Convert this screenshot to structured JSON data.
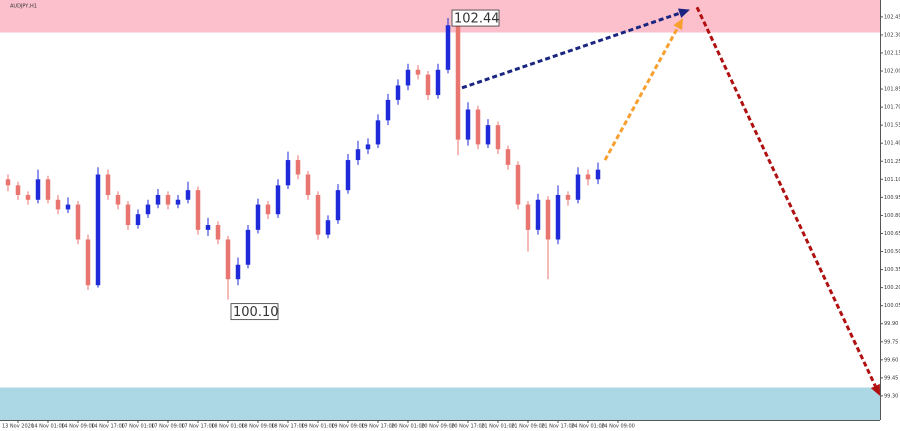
{
  "chart_data": {
    "type": "candlestick",
    "title": "AUDJPY,H1",
    "up_color": "#1f2bd8",
    "down_color": "#e8756f",
    "xlim": [
      -0.8,
      87.2
    ],
    "ylim": [
      99.1,
      102.59
    ],
    "yticks": [
      {
        "value": 99.3,
        "label": "99.30"
      },
      {
        "value": 99.45,
        "label": "99.45"
      },
      {
        "value": 99.6,
        "label": "99.60"
      },
      {
        "value": 99.75,
        "label": "99.75"
      },
      {
        "value": 99.9,
        "label": "99.90"
      },
      {
        "value": 100.05,
        "label": "100.05"
      },
      {
        "value": 100.2,
        "label": "100.20"
      },
      {
        "value": 100.35,
        "label": "100.35"
      },
      {
        "value": 100.5,
        "label": "100.50"
      },
      {
        "value": 100.65,
        "label": "100.65"
      },
      {
        "value": 100.8,
        "label": "100.80"
      },
      {
        "value": 100.95,
        "label": "100.95"
      },
      {
        "value": 101.1,
        "label": "101.10"
      },
      {
        "value": 101.25,
        "label": "101.25"
      },
      {
        "value": 101.4,
        "label": "101.40"
      },
      {
        "value": 101.55,
        "label": "101.55"
      },
      {
        "value": 101.7,
        "label": "101.70"
      },
      {
        "value": 101.85,
        "label": "101.85"
      },
      {
        "value": 102,
        "label": "102.00"
      },
      {
        "value": 102.15,
        "label": "102.15"
      },
      {
        "value": 102.3,
        "label": "102.30"
      },
      {
        "value": 102.45,
        "label": "102.45"
      }
    ],
    "xticks": [
      {
        "value": 1,
        "label": "13 Nov 2020"
      },
      {
        "value": 4,
        "label": "14 Nov 01:00"
      },
      {
        "value": 7,
        "label": "14 Nov 09:00"
      },
      {
        "value": 10,
        "label": "14 Nov 17:00"
      },
      {
        "value": 13,
        "label": "17 Nov 01:00"
      },
      {
        "value": 16,
        "label": "17 Nov 09:00"
      },
      {
        "value": 19,
        "label": "17 Nov 17:00"
      },
      {
        "value": 22,
        "label": "18 Nov 01:00"
      },
      {
        "value": 25,
        "label": "18 Nov 09:00"
      },
      {
        "value": 28,
        "label": "18 Nov 17:00"
      },
      {
        "value": 31,
        "label": "19 Nov 01:00"
      },
      {
        "value": 34,
        "label": "19 Nov 09:00"
      },
      {
        "value": 37,
        "label": "19 Nov 17:00"
      },
      {
        "value": 40,
        "label": "20 Nov 01:00"
      },
      {
        "value": 43,
        "label": "20 Nov 09:00"
      },
      {
        "value": 46,
        "label": "20 Nov 17:00"
      },
      {
        "value": 49,
        "label": "21 Nov 01:00"
      },
      {
        "value": 52,
        "label": "21 Nov 09:00"
      },
      {
        "value": 55,
        "label": "21 Nov 17:00"
      },
      {
        "value": 58,
        "label": "24 Nov 01:00"
      },
      {
        "value": 61,
        "label": "24 Nov 09:00"
      }
    ],
    "zones": [
      {
        "from": 102.32,
        "to": 102.59,
        "color": "#fbc0cc"
      },
      {
        "from": 99.1,
        "to": 99.37,
        "color": "#acd8e6"
      }
    ],
    "ohlc": [
      [
        101.1,
        101.14,
        101.0,
        101.05
      ],
      [
        101.05,
        101.08,
        100.93,
        100.97
      ],
      [
        100.97,
        101.0,
        100.89,
        100.93
      ],
      [
        100.93,
        101.18,
        100.9,
        101.1
      ],
      [
        101.1,
        101.13,
        100.9,
        100.93
      ],
      [
        100.93,
        100.97,
        100.81,
        100.85
      ],
      [
        100.85,
        100.95,
        100.82,
        100.89
      ],
      [
        100.89,
        100.92,
        100.56,
        100.6
      ],
      [
        100.6,
        100.64,
        100.18,
        100.22
      ],
      [
        100.22,
        101.2,
        100.2,
        101.14
      ],
      [
        101.14,
        101.18,
        100.93,
        100.97
      ],
      [
        100.97,
        101.0,
        100.85,
        100.89
      ],
      [
        100.89,
        100.92,
        100.68,
        100.72
      ],
      [
        100.72,
        100.85,
        100.69,
        100.81
      ],
      [
        100.81,
        100.93,
        100.78,
        100.89
      ],
      [
        100.89,
        101.02,
        100.86,
        100.97
      ],
      [
        100.97,
        101.0,
        100.85,
        100.89
      ],
      [
        100.89,
        100.97,
        100.86,
        100.93
      ],
      [
        100.93,
        101.08,
        100.9,
        101.01
      ],
      [
        101.01,
        101.04,
        100.64,
        100.68
      ],
      [
        100.68,
        100.78,
        100.63,
        100.72
      ],
      [
        100.72,
        100.75,
        100.56,
        100.6
      ],
      [
        100.6,
        100.63,
        100.1,
        100.27
      ],
      [
        100.27,
        100.45,
        100.22,
        100.39
      ],
      [
        100.39,
        100.72,
        100.36,
        100.68
      ],
      [
        100.68,
        100.94,
        100.65,
        100.89
      ],
      [
        100.89,
        100.92,
        100.77,
        100.81
      ],
      [
        100.81,
        101.1,
        100.78,
        101.05
      ],
      [
        101.05,
        101.33,
        101.02,
        101.26
      ],
      [
        101.26,
        101.3,
        101.1,
        101.14
      ],
      [
        101.14,
        101.17,
        100.93,
        100.97
      ],
      [
        100.97,
        101.0,
        100.6,
        100.64
      ],
      [
        100.64,
        100.8,
        100.61,
        100.76
      ],
      [
        100.76,
        101.06,
        100.73,
        101.01
      ],
      [
        101.01,
        101.31,
        100.98,
        101.26
      ],
      [
        101.26,
        101.42,
        101.22,
        101.35
      ],
      [
        101.35,
        101.44,
        101.31,
        101.39
      ],
      [
        101.39,
        101.64,
        101.36,
        101.59
      ],
      [
        101.59,
        101.81,
        101.55,
        101.76
      ],
      [
        101.76,
        101.93,
        101.72,
        101.88
      ],
      [
        101.88,
        102.06,
        101.84,
        102.01
      ],
      [
        102.01,
        102.05,
        101.93,
        101.97
      ],
      [
        101.97,
        102.0,
        101.76,
        101.8
      ],
      [
        101.8,
        102.06,
        101.77,
        102.01
      ],
      [
        102.01,
        102.44,
        101.98,
        102.38
      ],
      [
        102.38,
        102.41,
        101.3,
        101.43
      ],
      [
        101.43,
        101.74,
        101.38,
        101.68
      ],
      [
        101.68,
        101.71,
        101.35,
        101.39
      ],
      [
        101.39,
        101.6,
        101.36,
        101.55
      ],
      [
        101.55,
        101.58,
        101.31,
        101.35
      ],
      [
        101.35,
        101.38,
        101.18,
        101.22
      ],
      [
        101.22,
        101.25,
        100.85,
        100.89
      ],
      [
        100.89,
        100.92,
        100.5,
        100.68
      ],
      [
        100.68,
        100.98,
        100.64,
        100.93
      ],
      [
        100.93,
        100.96,
        100.27,
        100.6
      ],
      [
        100.6,
        101.05,
        100.56,
        100.97
      ],
      [
        100.97,
        101.0,
        100.88,
        100.93
      ],
      [
        100.93,
        101.2,
        100.9,
        101.14
      ],
      [
        101.14,
        101.18,
        101.05,
        101.1
      ],
      [
        101.1,
        101.24,
        101.06,
        101.18
      ]
    ],
    "annotations": [
      {
        "text": "102.44",
        "x": 44,
        "y": 102.44
      },
      {
        "text": "100.10",
        "x": 22,
        "y": 100.1
      }
    ],
    "arrows": [
      {
        "color": "#1a2580",
        "x": [
          45.4,
          68.2
        ],
        "y": [
          101.86,
          102.51
        ]
      },
      {
        "color": "#f7a030",
        "x": [
          59.7,
          67.5
        ],
        "y": [
          101.26,
          102.44
        ]
      },
      {
        "color": "#b01010",
        "x": [
          68.9,
          87.2
        ],
        "y": [
          102.53,
          99.3
        ]
      }
    ]
  }
}
